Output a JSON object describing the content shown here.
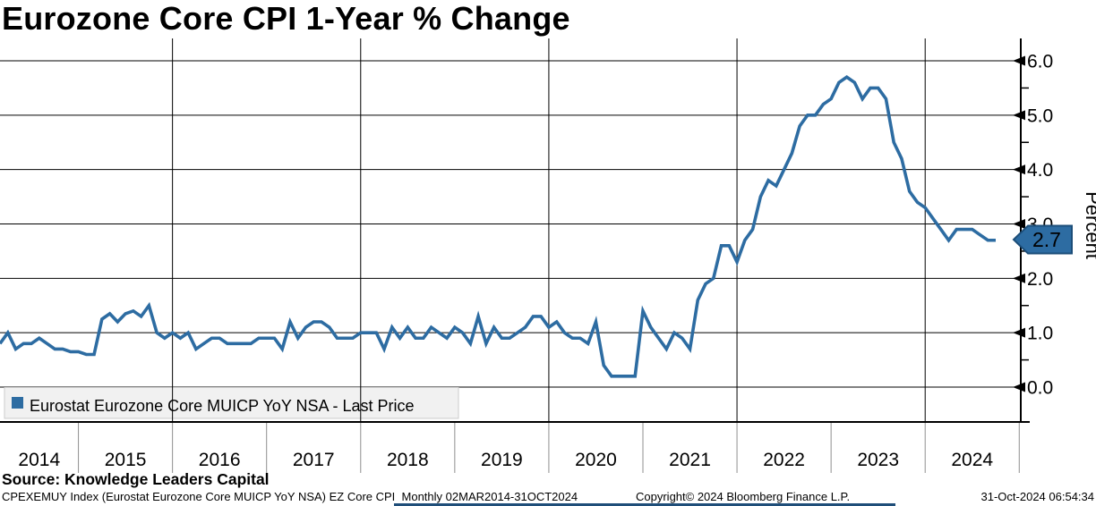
{
  "title": "Eurozone Core CPI 1-Year % Change",
  "legend": {
    "label": "Eurostat Eurozone Core MUICP YoY NSA - Last Price",
    "marker_color": "#2d6ca2"
  },
  "y_axis": {
    "label": "Percent",
    "tick_labels": [
      "0.0",
      "1.0",
      "2.0",
      "3.0",
      "4.0",
      "5.0",
      "6.0"
    ],
    "minor_tick_step": 0.5
  },
  "x_axis": {
    "years": [
      "2014",
      "2015",
      "2016",
      "2017",
      "2018",
      "2019",
      "2020",
      "2021",
      "2022",
      "2023",
      "2024"
    ]
  },
  "last_price_badge": {
    "value": "2.7",
    "bg_color": "#2d6ca2",
    "border_color": "#1c4e79",
    "text_color": "#ffffff"
  },
  "source_line": "Source: Knowledge Leaders Capital",
  "footer": {
    "security_info": "CPEXEMUY Index (Eurostat Eurozone Core MUICP YoY NSA) EZ Core CPI  Monthly 02MAR2014-31OCT2024",
    "copyright": "Copyright© 2024 Bloomberg Finance L.P.",
    "timestamp": "31-Oct-2024 06:54:34"
  },
  "chart_data": {
    "type": "line",
    "title": "Eurozone Core CPI 1-Year % Change",
    "ylabel": "Percent",
    "xlabel": "",
    "ylim": [
      0.0,
      6.0
    ],
    "x_start": "2014-03",
    "x_end": "2024-10",
    "frequency": "monthly",
    "grid": "horizontal major lines 0-6; vertical lines at even-year boundaries",
    "legend_position": "bottom-left inset box",
    "last_value": 2.7,
    "series": [
      {
        "name": "Eurostat Eurozone Core MUICP YoY NSA - Last Price",
        "color": "#2d6ca2",
        "values": [
          0.8,
          1.0,
          0.7,
          0.8,
          0.8,
          0.9,
          0.8,
          0.7,
          0.7,
          0.65,
          0.65,
          0.6,
          0.6,
          1.25,
          1.35,
          1.2,
          1.35,
          1.4,
          1.3,
          1.5,
          1.0,
          0.9,
          1.0,
          0.9,
          1.0,
          0.7,
          0.8,
          0.9,
          0.9,
          0.8,
          0.8,
          0.8,
          0.8,
          0.9,
          0.9,
          0.9,
          0.7,
          1.2,
          0.9,
          1.1,
          1.2,
          1.2,
          1.1,
          0.9,
          0.9,
          0.9,
          1.0,
          1.0,
          1.0,
          0.7,
          1.1,
          0.9,
          1.1,
          0.9,
          0.9,
          1.1,
          1.0,
          0.9,
          1.1,
          1.0,
          0.8,
          1.3,
          0.8,
          1.1,
          0.9,
          0.9,
          1.0,
          1.1,
          1.3,
          1.3,
          1.1,
          1.2,
          1.0,
          0.9,
          0.9,
          0.8,
          1.2,
          0.4,
          0.2,
          0.2,
          0.2,
          0.2,
          1.4,
          1.1,
          0.9,
          0.7,
          1.0,
          0.9,
          0.7,
          1.6,
          1.9,
          2.0,
          2.6,
          2.6,
          2.3,
          2.7,
          2.9,
          3.5,
          3.8,
          3.7,
          4.0,
          4.3,
          4.8,
          5.0,
          5.0,
          5.2,
          5.3,
          5.6,
          5.7,
          5.6,
          5.3,
          5.5,
          5.5,
          5.3,
          4.5,
          4.2,
          3.6,
          3.4,
          3.3,
          3.1,
          2.9,
          2.7,
          2.9,
          2.9,
          2.9,
          2.8,
          2.7,
          2.7
        ]
      }
    ]
  }
}
